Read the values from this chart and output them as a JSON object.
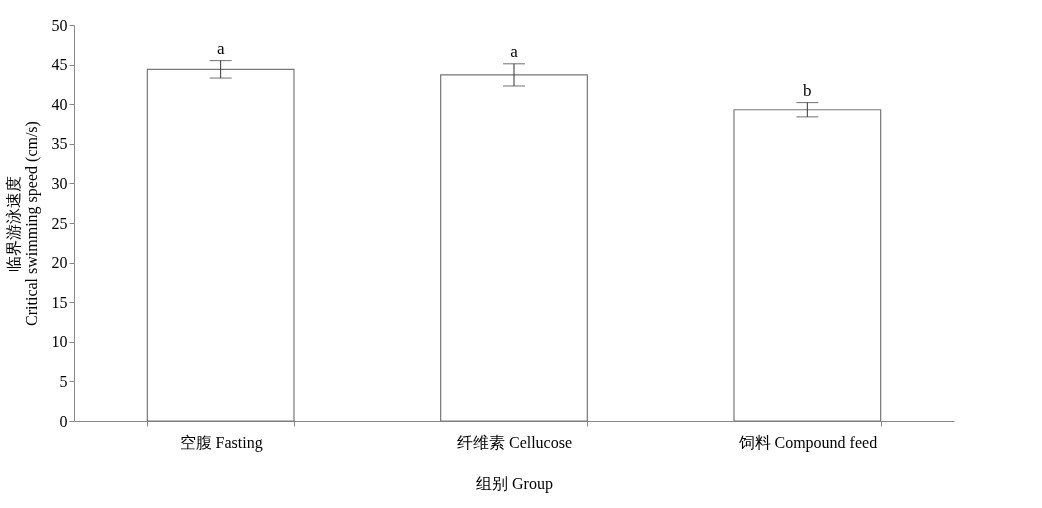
{
  "chart_data": {
    "type": "bar",
    "categories": [
      "空腹 Fasting",
      "纤维素 Cellucose",
      "饲料 Compound feed"
    ],
    "values": [
      44.4,
      43.7,
      39.3
    ],
    "errors": [
      1.1,
      1.4,
      0.9
    ],
    "color": "#ffffff",
    "xlabel": "组别 Group",
    "ylabel": "临界游泳速度\nCritical swimming speed (cm/s)",
    "ylim": [
      0,
      50
    ],
    "yticks": [
      0,
      5,
      10,
      15,
      20,
      25,
      30,
      35,
      40,
      45,
      50
    ],
    "grid": false,
    "annotations": [
      {
        "text": "a",
        "x": "空腹 Fasting",
        "y": 45.5
      },
      {
        "text": "a",
        "x": "纤维素 Cellucose",
        "y": 45.1
      },
      {
        "text": "b",
        "x": "饲料 Compound feed",
        "y": 40.2
      }
    ]
  }
}
